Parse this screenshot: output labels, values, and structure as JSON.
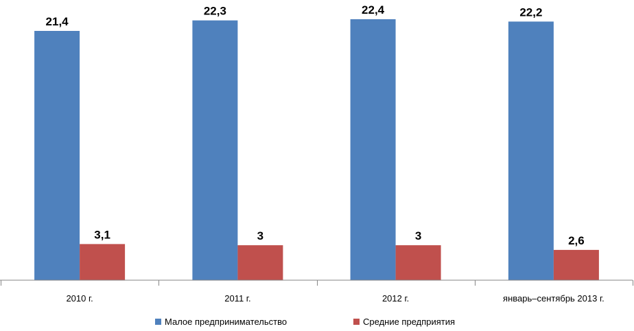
{
  "chart_data": {
    "type": "bar",
    "title": "",
    "xlabel": "",
    "ylabel": "",
    "categories": [
      "2010 г.",
      "2011 г.",
      "2012 г.",
      "январь–сентябрь 2013 г."
    ],
    "series": [
      {
        "name": "Малое предпринимательство",
        "color": "#4F81BD",
        "values": [
          21.4,
          22.3,
          22.4,
          22.2
        ],
        "labels": [
          "21,4",
          "22,3",
          "22,4",
          "22,2"
        ]
      },
      {
        "name": "Средние предприятия",
        "color": "#C0504D",
        "values": [
          3.1,
          3,
          3,
          2.6
        ],
        "labels": [
          "3,1",
          "3",
          "3",
          "2,6"
        ]
      }
    ],
    "ylim": [
      0,
      22.4
    ],
    "grid": false,
    "legend": "bottom"
  }
}
